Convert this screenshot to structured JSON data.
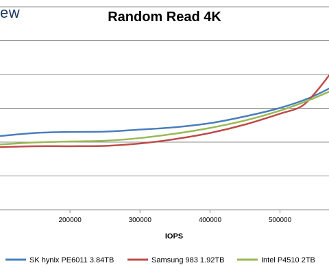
{
  "header": {
    "logo_text": "ew"
  },
  "chart_data": {
    "type": "line",
    "title": "Random Read 4K",
    "xlabel": "IOPS",
    "ylabel": "",
    "x_ticks": [
      200000,
      300000,
      400000,
      500000
    ],
    "x_tick_labels": [
      "200000",
      "300000",
      "400000",
      "500000"
    ],
    "xlim": [
      100000,
      570000
    ],
    "ylim": [
      0,
      6
    ],
    "grid": "horizontal",
    "legend_position": "bottom",
    "series": [
      {
        "name": "SK hynix PE6011 3.84TB",
        "color": "#4a7ebb",
        "x": [
          100000,
          150000,
          200000,
          250000,
          300000,
          350000,
          400000,
          450000,
          500000,
          540000,
          570000
        ],
        "y": [
          2.18,
          2.27,
          2.3,
          2.31,
          2.37,
          2.44,
          2.56,
          2.76,
          3.01,
          3.29,
          3.58
        ]
      },
      {
        "name": "Samsung 983 1.92TB",
        "color": "#be4b48",
        "x": [
          100000,
          150000,
          200000,
          250000,
          300000,
          350000,
          400000,
          450000,
          500000,
          530000,
          550000,
          570000
        ],
        "y": [
          1.85,
          1.88,
          1.88,
          1.89,
          1.96,
          2.09,
          2.27,
          2.52,
          2.84,
          3.05,
          3.45,
          3.97
        ]
      },
      {
        "name": "Intel P4510 2TB",
        "color": "#98b954",
        "x": [
          100000,
          150000,
          200000,
          250000,
          300000,
          350000,
          400000,
          450000,
          500000,
          540000,
          570000
        ],
        "y": [
          1.93,
          1.99,
          2.02,
          2.04,
          2.12,
          2.25,
          2.42,
          2.64,
          2.93,
          3.23,
          3.49
        ]
      }
    ]
  }
}
